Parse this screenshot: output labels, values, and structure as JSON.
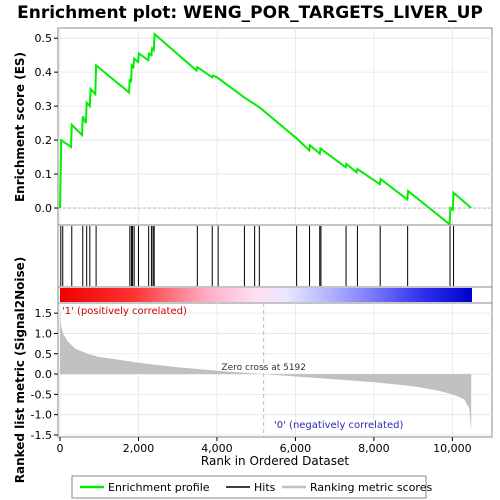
{
  "chart_data": {
    "type": "line",
    "title": "Enrichment plot: WENG_POR_TARGETS_LIVER_UP",
    "ylabel_top": "Enrichment score (ES)",
    "ylabel_bottom": "Ranked list metric (Signal2Noise)",
    "xlabel": "Rank in Ordered Dataset",
    "xlim": [
      0,
      10500
    ],
    "x_ticks": [
      0,
      2000,
      4000,
      6000,
      8000,
      10000
    ],
    "x_tick_labels": [
      "0",
      "2,000",
      "4,000",
      "6,000",
      "8,000",
      "10,000"
    ],
    "es_ylim": [
      -0.05,
      0.53
    ],
    "es_ticks": [
      0.0,
      0.1,
      0.2,
      0.3,
      0.4,
      0.5
    ],
    "es_tick_labels": [
      "0.0",
      "0.1",
      "0.2",
      "0.3",
      "0.4",
      "0.5"
    ],
    "metric_ylim": [
      -1.55,
      1.75
    ],
    "metric_ticks": [
      -1.5,
      -1.0,
      -0.5,
      0.0,
      0.5,
      1.0,
      1.5
    ],
    "metric_tick_labels": [
      "-1.5",
      "-1.0",
      "-0.5",
      "0.0",
      "0.5",
      "1.0",
      "1.5"
    ],
    "es_points": [
      [
        0,
        0
      ],
      [
        30,
        0.2
      ],
      [
        280,
        0.18
      ],
      [
        300,
        0.245
      ],
      [
        560,
        0.215
      ],
      [
        580,
        0.27
      ],
      [
        660,
        0.25
      ],
      [
        680,
        0.31
      ],
      [
        760,
        0.3
      ],
      [
        780,
        0.35
      ],
      [
        900,
        0.335
      ],
      [
        920,
        0.42
      ],
      [
        1760,
        0.34
      ],
      [
        1780,
        0.38
      ],
      [
        1810,
        0.37
      ],
      [
        1830,
        0.42
      ],
      [
        1870,
        0.415
      ],
      [
        1890,
        0.44
      ],
      [
        1990,
        0.43
      ],
      [
        2010,
        0.455
      ],
      [
        2250,
        0.435
      ],
      [
        2270,
        0.455
      ],
      [
        2330,
        0.45
      ],
      [
        2350,
        0.47
      ],
      [
        2390,
        0.465
      ],
      [
        2410,
        0.512
      ],
      [
        3480,
        0.405
      ],
      [
        3500,
        0.415
      ],
      [
        3880,
        0.385
      ],
      [
        3900,
        0.39
      ],
      [
        4000,
        0.385
      ],
      [
        4700,
        0.325
      ],
      [
        5100,
        0.295
      ],
      [
        6030,
        0.205
      ],
      [
        6350,
        0.17
      ],
      [
        6370,
        0.185
      ],
      [
        6620,
        0.16
      ],
      [
        6640,
        0.175
      ],
      [
        7280,
        0.12
      ],
      [
        7300,
        0.13
      ],
      [
        7560,
        0.105
      ],
      [
        7580,
        0.115
      ],
      [
        8150,
        0.07
      ],
      [
        8170,
        0.085
      ],
      [
        8850,
        0.025
      ],
      [
        8870,
        0.05
      ],
      [
        9930,
        -0.048
      ],
      [
        9950,
        0.0
      ],
      [
        10010,
        -0.005
      ],
      [
        10030,
        0.045
      ],
      [
        10480,
        0.0
      ]
    ],
    "hits": [
      20,
      70,
      300,
      580,
      680,
      760,
      920,
      1780,
      1820,
      1850,
      1890,
      2000,
      2260,
      2330,
      2370,
      2400,
      3500,
      3880,
      4030,
      4700,
      4960,
      5080,
      6030,
      6360,
      6620,
      6650,
      7290,
      7580,
      8160,
      8860,
      9940,
      10030
    ],
    "metric_points": [
      [
        0,
        1.72
      ],
      [
        20,
        1.2
      ],
      [
        80,
        1.0
      ],
      [
        200,
        0.8
      ],
      [
        400,
        0.62
      ],
      [
        700,
        0.5
      ],
      [
        1000,
        0.42
      ],
      [
        1500,
        0.35
      ],
      [
        2000,
        0.28
      ],
      [
        3000,
        0.17
      ],
      [
        4000,
        0.08
      ],
      [
        5192,
        0.0
      ],
      [
        6000,
        -0.06
      ],
      [
        7000,
        -0.13
      ],
      [
        8000,
        -0.2
      ],
      [
        9000,
        -0.3
      ],
      [
        9600,
        -0.4
      ],
      [
        10000,
        -0.5
      ],
      [
        10300,
        -0.62
      ],
      [
        10430,
        -0.85
      ],
      [
        10480,
        -1.4
      ]
    ],
    "zero_cross_rank": 5192,
    "annotations": {
      "pos": "'1' (positively correlated)",
      "neg": "'0' (negatively correlated)",
      "zero": "Zero cross at 5192"
    },
    "legend": [
      "Enrichment profile",
      "Hits",
      "Ranking metric scores"
    ],
    "colors": {
      "es_line": "#00ee00",
      "hit_line": "#000000",
      "metric_fill": "#c0c0c0",
      "pos_red": "#ee0000",
      "neg_blue": "#0000cc"
    }
  }
}
